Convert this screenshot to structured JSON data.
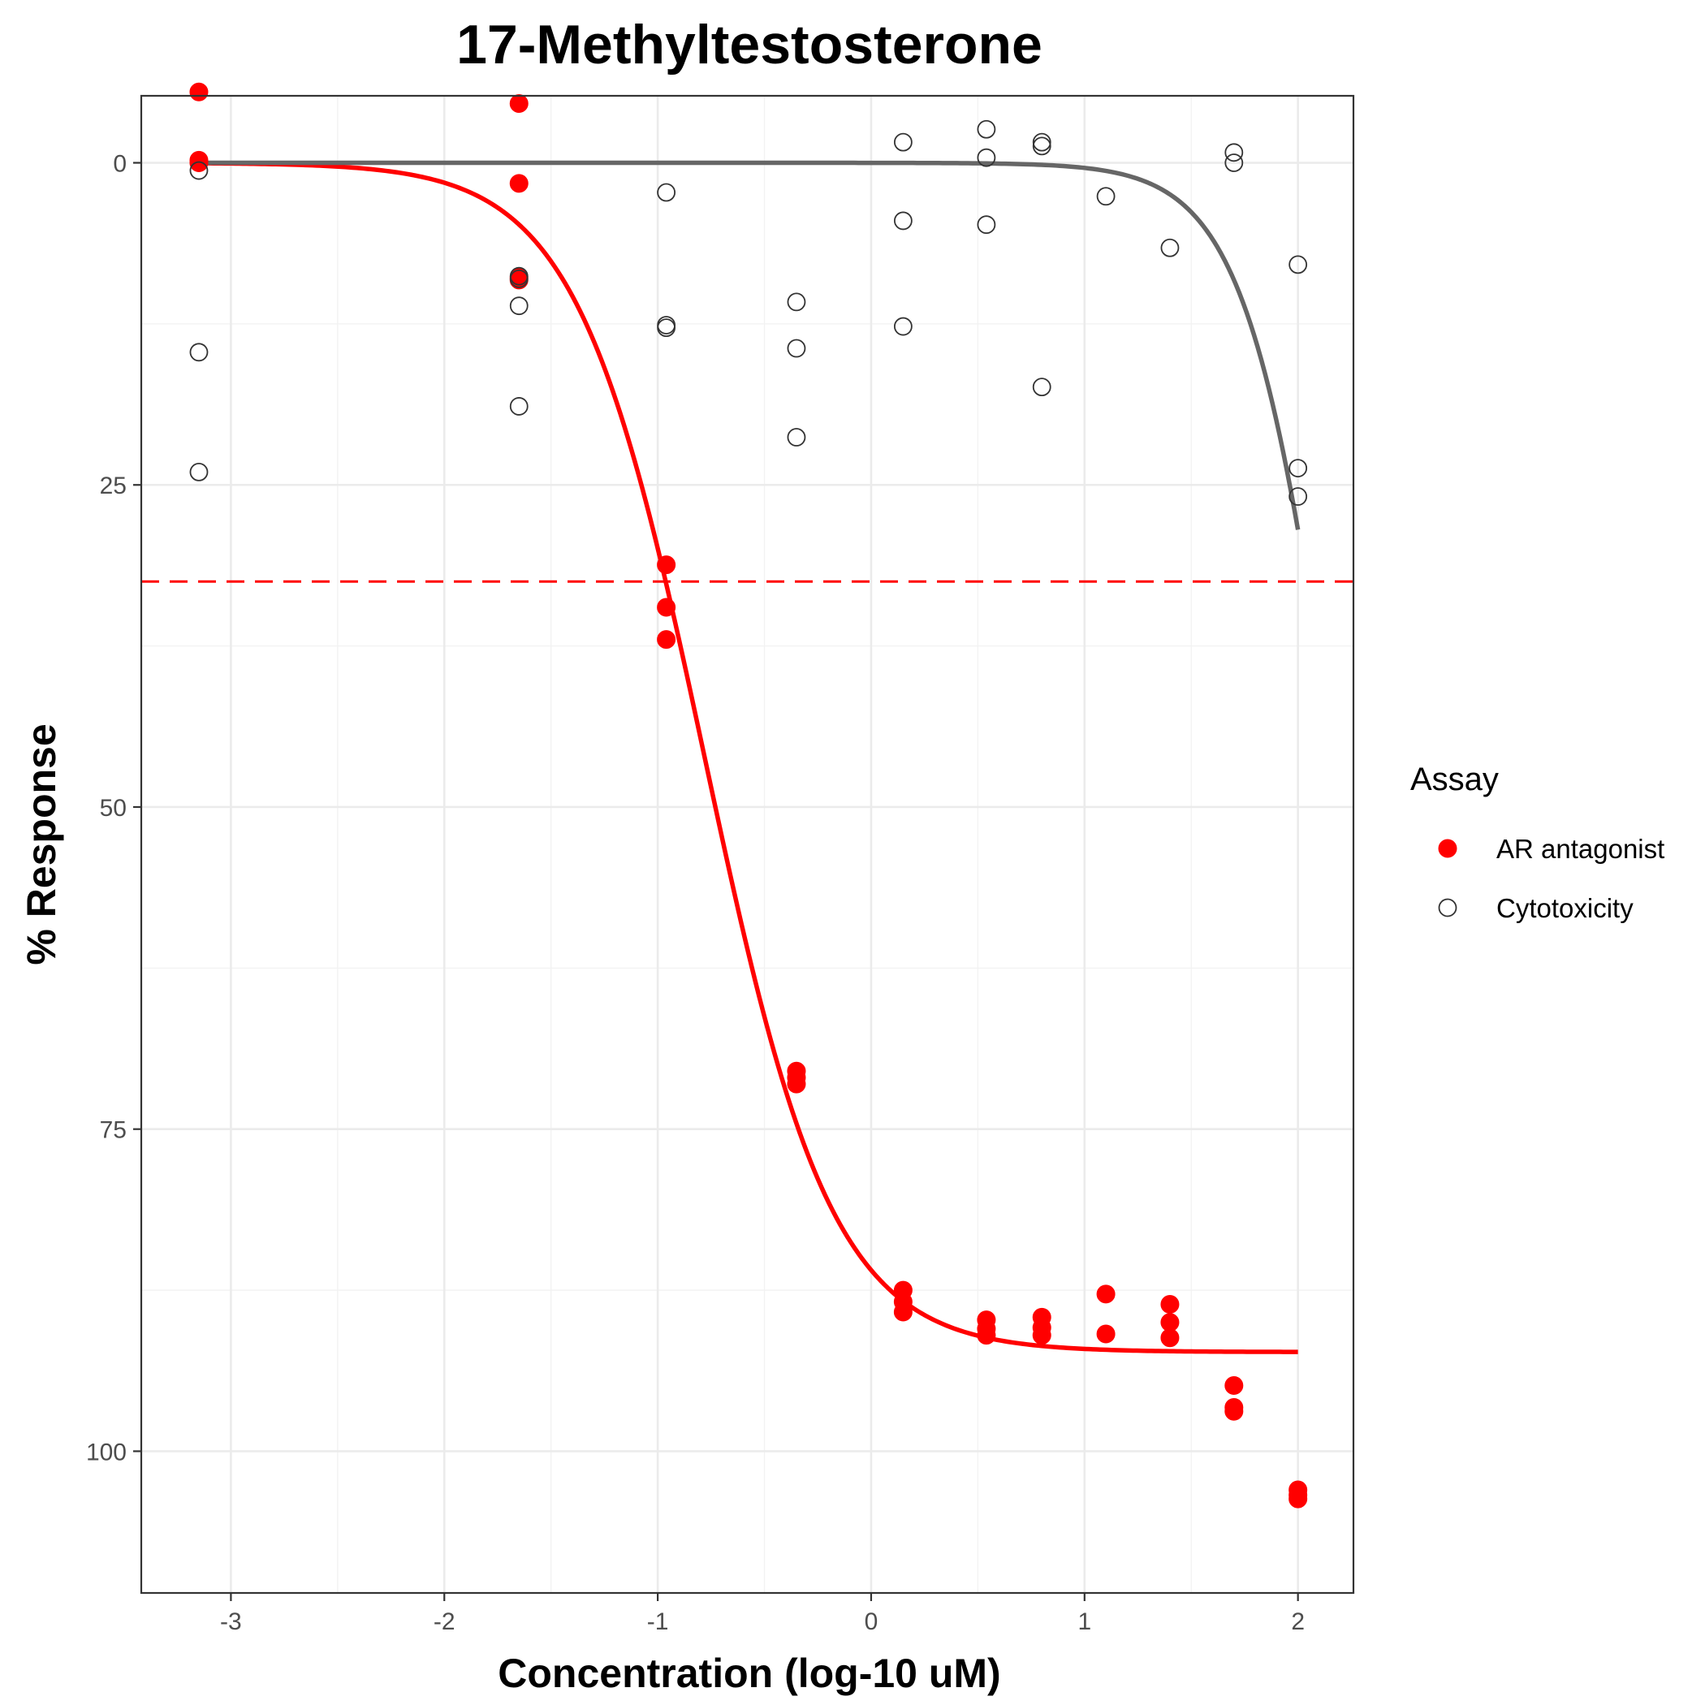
{
  "chart_data": {
    "type": "scatter",
    "title": "17-Methyltestosterone",
    "xlabel": "Concentration (log-10 uM)",
    "ylabel": "% Response",
    "xlim": [
      -3.42,
      2.26
    ],
    "ylim": [
      111.0,
      -5.2
    ],
    "y_reversed": true,
    "x_ticks": [
      -3,
      -2,
      -1,
      0,
      1,
      2
    ],
    "y_ticks": [
      0,
      25,
      50,
      75,
      100
    ],
    "grid": true,
    "legend": {
      "title": "Assay",
      "position": "right",
      "entries": [
        {
          "label": "AR antagonist",
          "color": "#ff0000",
          "marker": "filled-circle"
        },
        {
          "label": "Cytotoxicity",
          "color": "#333333",
          "marker": "open-circle"
        }
      ]
    },
    "series": [
      {
        "name": "AR antagonist",
        "color": "#ff0000",
        "points": [
          [
            -3.15,
            -5.5
          ],
          [
            -3.15,
            -0.2
          ],
          [
            -3.15,
            0.0
          ],
          [
            -1.65,
            -4.6
          ],
          [
            -1.65,
            1.6
          ],
          [
            -1.65,
            8.9
          ],
          [
            -1.65,
            9.1
          ],
          [
            -0.96,
            31.2
          ],
          [
            -0.96,
            34.5
          ],
          [
            -0.96,
            37.0
          ],
          [
            -0.35,
            70.5
          ],
          [
            -0.35,
            71.0
          ],
          [
            -0.35,
            71.5
          ],
          [
            0.15,
            87.5
          ],
          [
            0.15,
            88.4
          ],
          [
            0.15,
            89.2
          ],
          [
            0.54,
            89.8
          ],
          [
            0.54,
            90.5
          ],
          [
            0.54,
            91.0
          ],
          [
            0.8,
            89.6
          ],
          [
            0.8,
            90.4
          ],
          [
            0.8,
            91.0
          ],
          [
            1.1,
            87.8
          ],
          [
            1.1,
            90.9
          ],
          [
            1.4,
            88.6
          ],
          [
            1.4,
            90.0
          ],
          [
            1.4,
            91.2
          ],
          [
            1.7,
            94.9
          ],
          [
            1.7,
            96.6
          ],
          [
            1.7,
            96.9
          ],
          [
            2.0,
            103.0
          ],
          [
            2.0,
            103.4
          ],
          [
            2.0,
            103.7
          ]
        ],
        "curve": {
          "model": "hill",
          "top": 0,
          "bottom": 92.3,
          "log_ac50": -0.78,
          "hill_slope": 1.45,
          "x_range": [
            -3.15,
            2.0
          ]
        }
      },
      {
        "name": "Cytotoxicity",
        "color": "#333333",
        "points": [
          [
            -3.15,
            0.6
          ],
          [
            -3.15,
            14.7
          ],
          [
            -3.15,
            24.0
          ],
          [
            -1.65,
            8.8
          ],
          [
            -1.65,
            9.0
          ],
          [
            -1.65,
            11.1
          ],
          [
            -1.65,
            18.9
          ],
          [
            -0.96,
            2.3
          ],
          [
            -0.96,
            12.6
          ],
          [
            -0.96,
            12.8
          ],
          [
            -0.35,
            10.8
          ],
          [
            -0.35,
            14.4
          ],
          [
            -0.35,
            21.3
          ],
          [
            0.15,
            -1.6
          ],
          [
            0.15,
            4.5
          ],
          [
            0.15,
            12.7
          ],
          [
            0.54,
            -2.6
          ],
          [
            0.54,
            -0.4
          ],
          [
            0.54,
            4.8
          ],
          [
            0.8,
            -1.6
          ],
          [
            0.8,
            -1.3
          ],
          [
            0.8,
            17.4
          ],
          [
            1.1,
            2.6
          ],
          [
            1.4,
            6.6
          ],
          [
            1.7,
            -0.8
          ],
          [
            1.7,
            0.0
          ],
          [
            2.0,
            7.9
          ],
          [
            2.0,
            23.7
          ],
          [
            2.0,
            25.9
          ]
        ],
        "curve": {
          "model": "hill",
          "top": 0,
          "bottom": 100,
          "log_ac50": 2.2,
          "hill_slope": 2.0,
          "x_range": [
            -3.15,
            2.0
          ]
        }
      }
    ],
    "threshold": {
      "y": 32.5,
      "color": "#ff0000",
      "style": "dashed"
    }
  }
}
